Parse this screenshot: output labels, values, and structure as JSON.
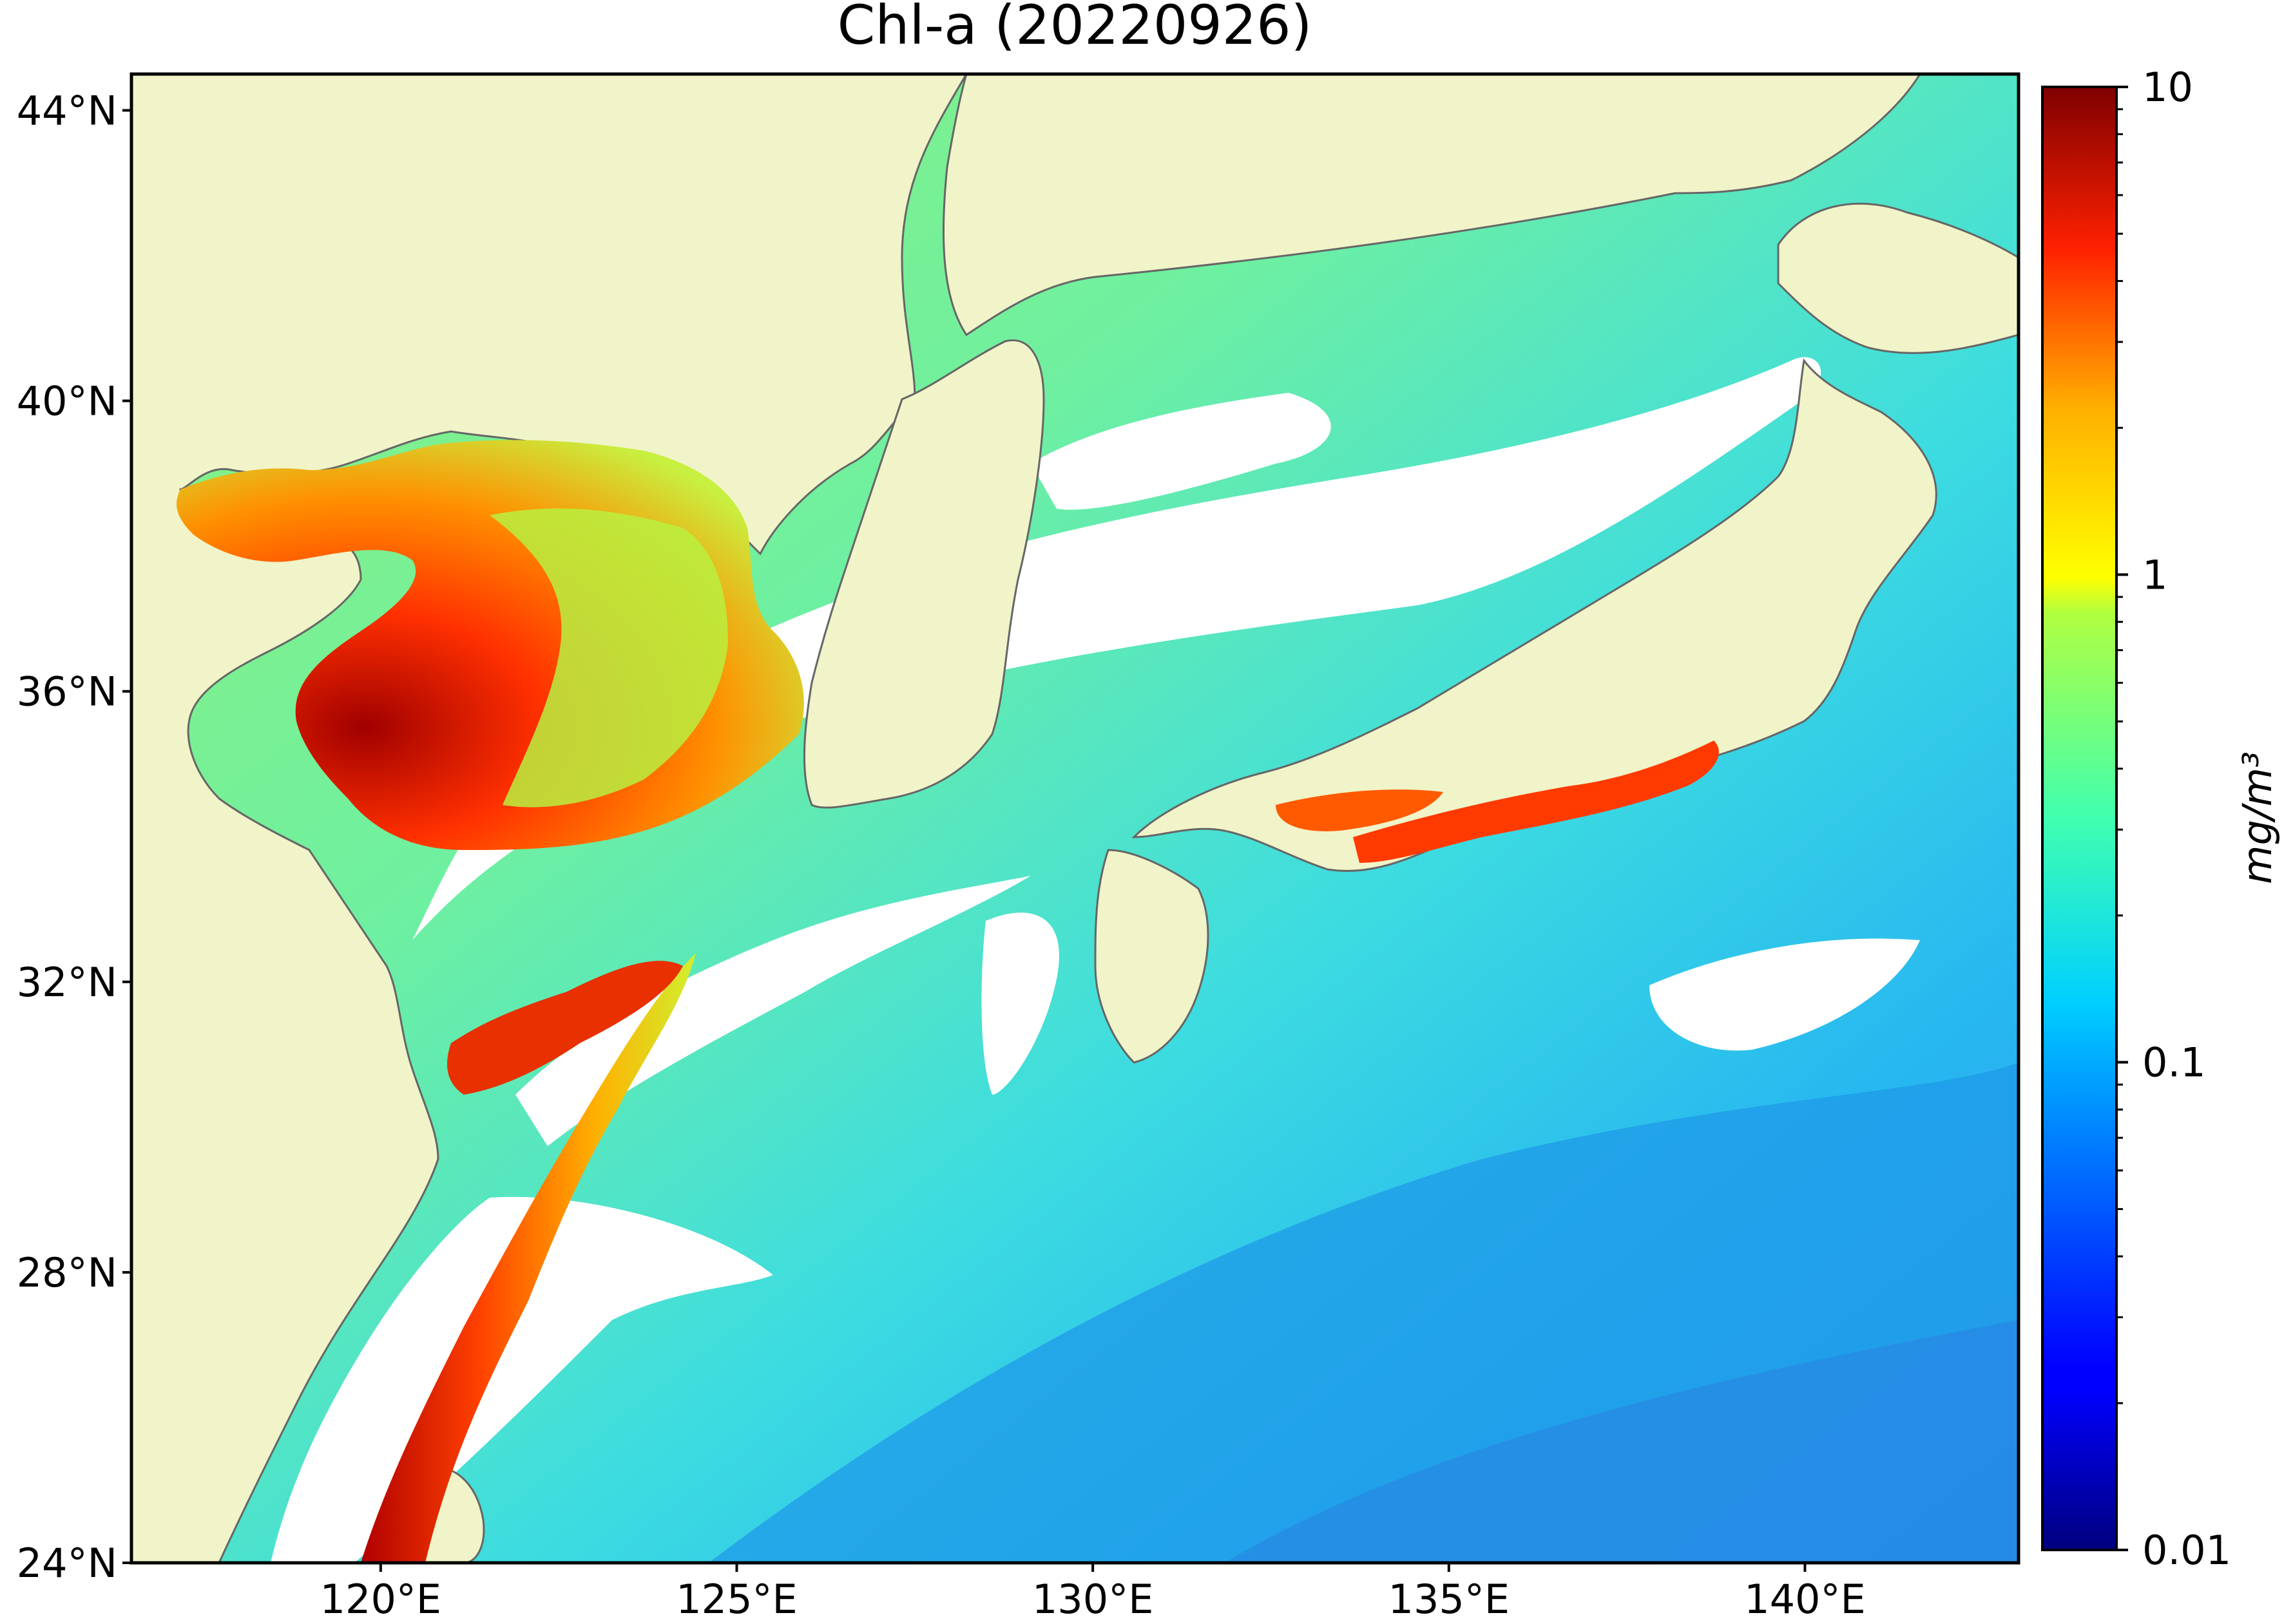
{
  "title": "Chl-a (20220926)",
  "map": {
    "lon_range": [
      116.5,
      143.0
    ],
    "lat_range": [
      24.0,
      44.5
    ],
    "lat_ticks": [
      {
        "value": 44,
        "label": "44°N"
      },
      {
        "value": 40,
        "label": "40°N"
      },
      {
        "value": 36,
        "label": "36°N"
      },
      {
        "value": 32,
        "label": "32°N"
      },
      {
        "value": 28,
        "label": "28°N"
      },
      {
        "value": 24,
        "label": "24°N"
      }
    ],
    "lon_ticks": [
      {
        "value": 120,
        "label": "120°E"
      },
      {
        "value": 125,
        "label": "125°E"
      },
      {
        "value": 130,
        "label": "130°E"
      },
      {
        "value": 135,
        "label": "135°E"
      },
      {
        "value": 140,
        "label": "140°E"
      }
    ],
    "colors": {
      "land": "#f0f4c8",
      "no_data": "#ffffff",
      "coastline": "#666666",
      "frame": "#000000"
    }
  },
  "colorbar": {
    "scale": "log",
    "range": [
      0.01,
      10
    ],
    "unit": "mg/m³",
    "colormap": "jet",
    "ticks": [
      {
        "value": 10,
        "label": "10"
      },
      {
        "value": 1,
        "label": "1"
      },
      {
        "value": 0.1,
        "label": "0.1"
      },
      {
        "value": 0.01,
        "label": "0.01"
      }
    ]
  }
}
